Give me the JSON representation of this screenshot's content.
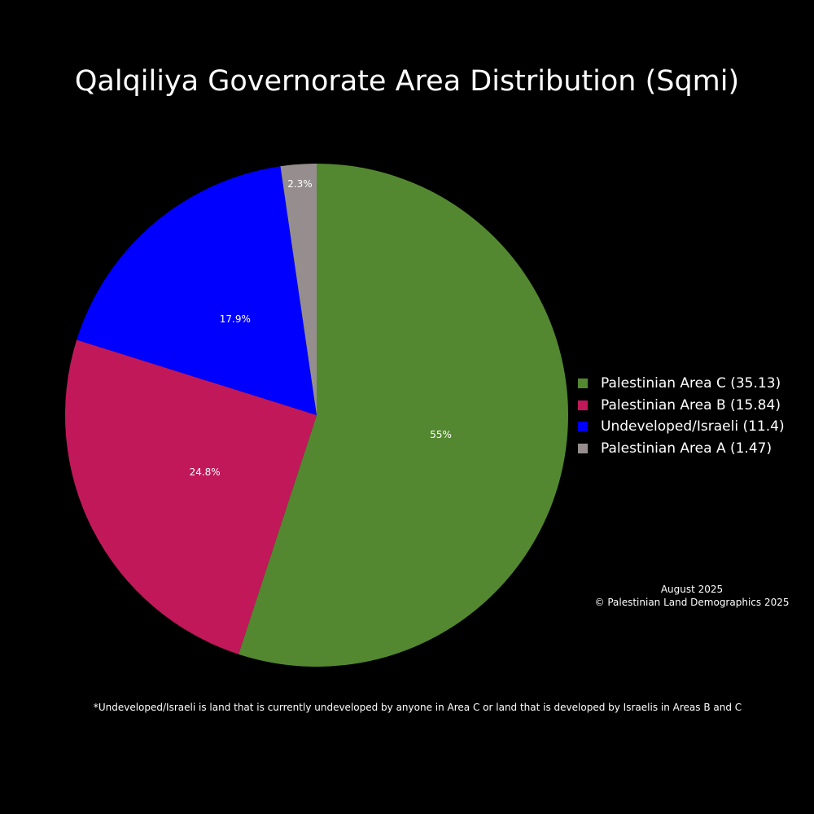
{
  "chart_data": {
    "type": "pie",
    "title": "Qalqiliya Governorate Area Distribution (Sqmi)",
    "slices": [
      {
        "label": "Palestinian Area C (35.13)",
        "value": 35.13,
        "percent_label": "55%",
        "color": "#548830"
      },
      {
        "label": "Palestinian Area B (15.84)",
        "value": 15.84,
        "percent_label": "24.8%",
        "color": "#C1185A"
      },
      {
        "label": "Undeveloped/Israeli (11.4)",
        "value": 11.4,
        "percent_label": "17.9%",
        "color": "#0000FF"
      },
      {
        "label": "Palestinian Area A (1.47)",
        "value": 1.47,
        "percent_label": "2.3%",
        "color": "#968E8E"
      }
    ],
    "legend_position": "right",
    "background": "#000000",
    "text_color": "#FFFFFF"
  },
  "annotations": {
    "date": "August 2025",
    "copyright": "© Palestinian Land Demographics 2025",
    "footnote": "*Undeveloped/Israeli is land that is currently undeveloped by anyone in Area C or land that is developed by Israelis in Areas B and C"
  }
}
